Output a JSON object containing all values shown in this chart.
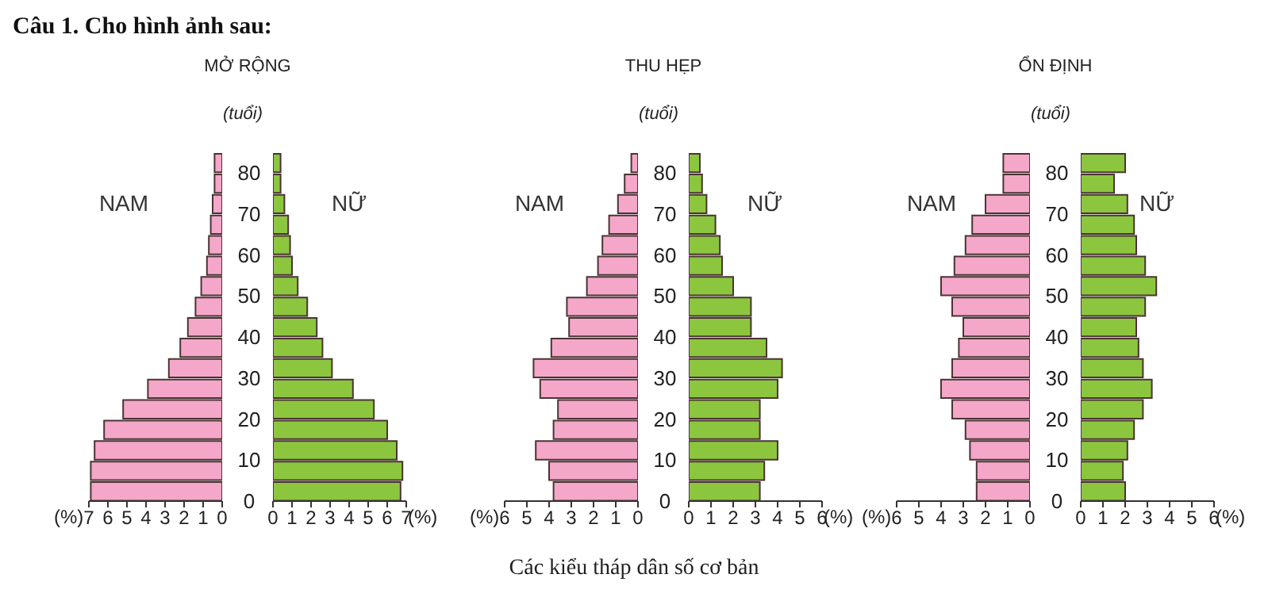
{
  "chart_data": [
    {
      "type": "bar",
      "orientation": "horizontal",
      "title": "MỞ RỘNG",
      "ylabel": "(tuổi)",
      "xlabel": "(%)",
      "annotations": [
        "Câu 1. Cho hình ảnh sau:"
      ],
      "x": [
        2.5,
        7.5,
        12.5,
        17.5,
        22.5,
        27.5,
        32.5,
        37.5,
        42.5,
        47.5,
        52.5,
        57.5,
        62.5,
        67.5,
        72.5,
        77.5,
        82.5
      ],
      "ylim": [
        0,
        85
      ],
      "yticks": [
        0,
        10,
        20,
        30,
        40,
        50,
        60,
        70,
        80
      ],
      "xlim": [
        7,
        0
      ],
      "xticks": [
        7,
        6,
        5,
        4,
        3,
        2,
        1,
        0
      ],
      "series": [
        {
          "name": "NAM",
          "color": "#f4a7c9",
          "values": [
            6.9,
            6.9,
            6.7,
            6.2,
            5.2,
            3.9,
            2.8,
            2.2,
            1.8,
            1.4,
            1.1,
            0.8,
            0.7,
            0.6,
            0.5,
            0.4,
            0.4
          ]
        }
      ]
    },
    {
      "type": "bar",
      "orientation": "horizontal",
      "xlabel": "(%)",
      "tick_labels": "x",
      "x": [
        2.5,
        7.5,
        12.5,
        17.5,
        22.5,
        27.5,
        32.5,
        37.5,
        42.5,
        47.5,
        52.5,
        57.5,
        62.5,
        67.5,
        72.5,
        77.5,
        82.5
      ],
      "ylim": [
        0,
        85
      ],
      "xlim": [
        0,
        7
      ],
      "xticks": [
        0,
        1,
        2,
        3,
        4,
        5,
        6,
        7
      ],
      "series": [
        {
          "name": "NỮ",
          "color": "#8cc63e",
          "values": [
            6.7,
            6.8,
            6.5,
            6.0,
            5.3,
            4.2,
            3.1,
            2.6,
            2.3,
            1.8,
            1.3,
            1.0,
            0.9,
            0.8,
            0.6,
            0.4,
            0.4
          ]
        }
      ]
    },
    {
      "type": "bar",
      "orientation": "horizontal",
      "title": "THU HẸP",
      "ylabel": "(tuổi)",
      "xlabel": "(%)",
      "annotations": [
        "Các kiểu tháp dân số cơ bản"
      ],
      "x": [
        2.5,
        7.5,
        12.5,
        17.5,
        22.5,
        27.5,
        32.5,
        37.5,
        42.5,
        47.5,
        52.5,
        57.5,
        62.5,
        67.5,
        72.5,
        77.5,
        82.5
      ],
      "ylim": [
        0,
        85
      ],
      "yticks": [
        0,
        10,
        20,
        30,
        40,
        50,
        60,
        70,
        80
      ],
      "xlim": [
        6,
        0
      ],
      "xticks": [
        6,
        5,
        4,
        3,
        2,
        1,
        0
      ],
      "series": [
        {
          "name": "NAM",
          "color": "#f4a7c9",
          "values": [
            3.8,
            4.0,
            4.6,
            3.8,
            3.6,
            4.4,
            4.7,
            3.9,
            3.1,
            3.2,
            2.3,
            1.8,
            1.6,
            1.3,
            0.9,
            0.6,
            0.3
          ]
        }
      ]
    },
    {
      "type": "bar",
      "orientation": "horizontal",
      "xlabel": "(%)",
      "tick_labels": "x",
      "x": [
        2.5,
        7.5,
        12.5,
        17.5,
        22.5,
        27.5,
        32.5,
        37.5,
        42.5,
        47.5,
        52.5,
        57.5,
        62.5,
        67.5,
        72.5,
        77.5,
        82.5
      ],
      "ylim": [
        0,
        85
      ],
      "xlim": [
        0,
        6
      ],
      "xticks": [
        0,
        1,
        2,
        3,
        4,
        5,
        6
      ],
      "series": [
        {
          "name": "NỮ",
          "color": "#8cc63e",
          "values": [
            3.2,
            3.4,
            4.0,
            3.2,
            3.2,
            4.0,
            4.2,
            3.5,
            2.8,
            2.8,
            2.0,
            1.5,
            1.4,
            1.2,
            0.8,
            0.6,
            0.5
          ]
        }
      ]
    },
    {
      "type": "bar",
      "orientation": "horizontal",
      "title": "ỔN ĐỊNH",
      "ylabel": "(tuổi)",
      "xlabel": "(%)",
      "x": [
        2.5,
        7.5,
        12.5,
        17.5,
        22.5,
        27.5,
        32.5,
        37.5,
        42.5,
        47.5,
        52.5,
        57.5,
        62.5,
        67.5,
        72.5,
        77.5,
        82.5
      ],
      "ylim": [
        0,
        85
      ],
      "yticks": [
        0,
        10,
        20,
        30,
        40,
        50,
        60,
        70,
        80
      ],
      "xlim": [
        6,
        0
      ],
      "xticks": [
        6,
        5,
        4,
        3,
        2,
        1,
        0
      ],
      "series": [
        {
          "name": "NAM",
          "color": "#f4a7c9",
          "values": [
            2.4,
            2.4,
            2.7,
            2.9,
            3.5,
            4.0,
            3.5,
            3.2,
            3.0,
            3.5,
            4.0,
            3.4,
            2.9,
            2.6,
            2.0,
            1.2,
            1.2
          ]
        }
      ]
    },
    {
      "type": "bar",
      "orientation": "horizontal",
      "xlabel": "(%)",
      "tick_labels": "x",
      "x": [
        2.5,
        7.5,
        12.5,
        17.5,
        22.5,
        27.5,
        32.5,
        37.5,
        42.5,
        47.5,
        52.5,
        57.5,
        62.5,
        67.5,
        72.5,
        77.5,
        82.5
      ],
      "ylim": [
        0,
        85
      ],
      "xlim": [
        0,
        6
      ],
      "xticks": [
        0,
        1,
        2,
        3,
        4,
        5,
        6
      ],
      "series": [
        {
          "name": "NỮ",
          "color": "#8cc63e",
          "values": [
            2.0,
            1.9,
            2.1,
            2.4,
            2.8,
            3.2,
            2.8,
            2.6,
            2.5,
            2.9,
            3.4,
            2.9,
            2.5,
            2.4,
            2.1,
            1.5,
            2.0
          ]
        }
      ]
    }
  ]
}
